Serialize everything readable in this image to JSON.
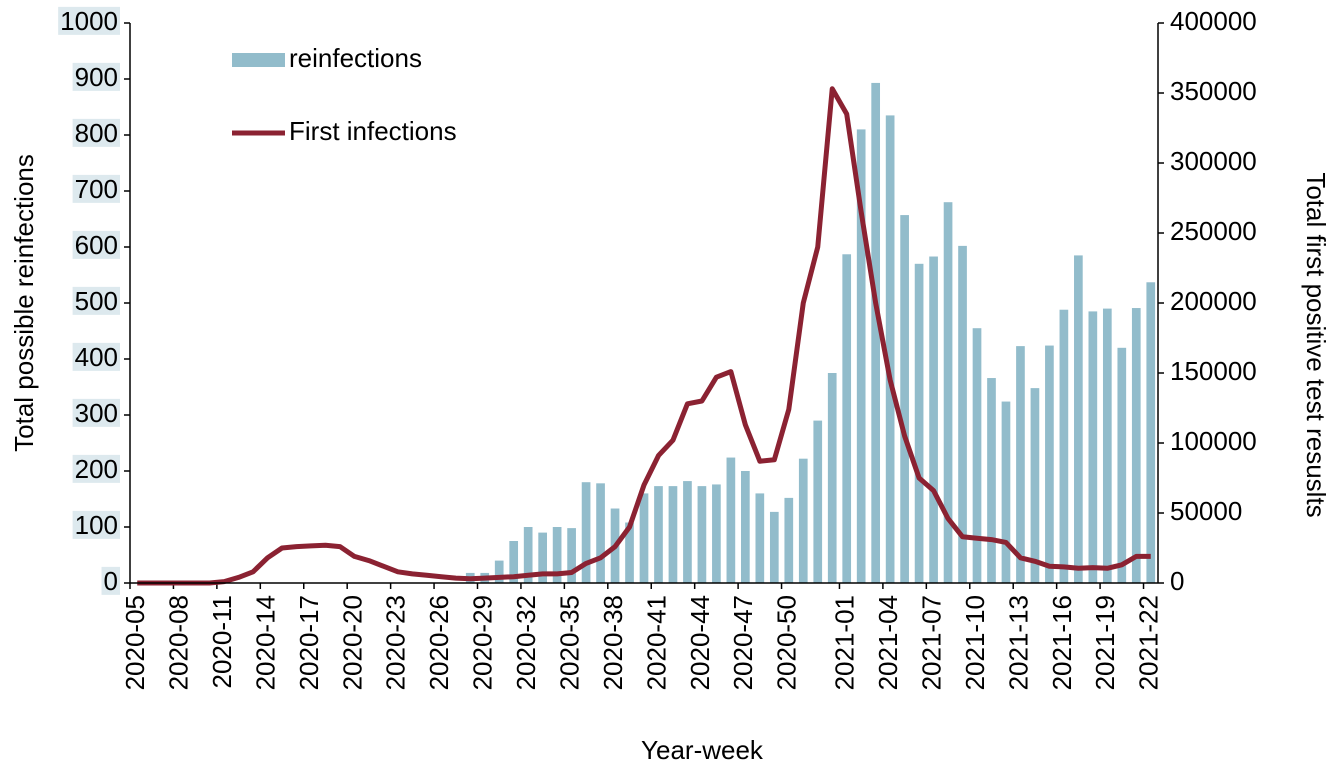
{
  "chart_data": {
    "type": "bar_line",
    "x_label": "Year-week",
    "y_label": "Total possible reinfections",
    "y2_label": "Total first positive test resuslts",
    "categories": [
      "2020-05",
      null,
      null,
      "2020-08",
      null,
      null,
      "2020-11",
      null,
      null,
      "2020-14",
      null,
      null,
      "2020-17",
      null,
      null,
      "2020-20",
      null,
      null,
      "2020-23",
      null,
      null,
      "2020-26",
      null,
      null,
      "2020-29",
      null,
      null,
      "2020-32",
      null,
      null,
      "2020-35",
      null,
      null,
      "2020-38",
      null,
      null,
      "2020-41",
      null,
      null,
      "2020-44",
      null,
      null,
      "2020-47",
      null,
      null,
      "2020-50",
      null,
      null,
      null,
      "2021-01",
      null,
      null,
      "2021-04",
      null,
      null,
      "2021-07",
      null,
      null,
      "2021-10",
      null,
      null,
      "2021-13",
      null,
      null,
      "2021-16",
      null,
      null,
      "2021-19",
      null,
      null,
      "2021-22"
    ],
    "series": [
      {
        "name": "reinfections",
        "color": "#92bccb",
        "kind": "bar",
        "values": [
          0,
          0,
          0,
          0,
          0,
          0,
          0,
          0,
          0,
          0,
          0,
          0,
          0,
          0,
          0,
          0,
          0,
          0,
          0,
          0,
          0,
          0,
          0,
          18,
          18,
          40,
          75,
          100,
          90,
          100,
          98,
          180,
          178,
          133,
          108,
          160,
          173,
          173,
          182,
          173,
          176,
          224,
          200,
          160,
          127,
          152,
          222,
          290,
          375,
          587,
          810,
          893,
          835,
          657,
          570,
          583,
          680,
          602,
          455,
          366,
          324,
          423,
          348,
          424,
          488,
          585,
          485,
          490,
          420,
          491,
          537
        ]
      },
      {
        "name": "First infections",
        "color": "#8b2232",
        "kind": "line",
        "axis": "y2",
        "values": [
          0,
          0,
          0,
          0,
          0,
          0,
          1000,
          4000,
          8000,
          18000,
          25000,
          26000,
          26500,
          27000,
          26000,
          19000,
          16000,
          12000,
          8000,
          6500,
          5500,
          4500,
          3500,
          3000,
          3500,
          4000,
          4500,
          5500,
          6500,
          6500,
          7500,
          14000,
          18000,
          26000,
          40000,
          70000,
          91000,
          102000,
          128000,
          130000,
          147000,
          151000,
          113000,
          87000,
          88000,
          124000,
          200000,
          240000,
          353000,
          335000,
          265000,
          200000,
          145000,
          105000,
          75000,
          66000,
          46000,
          33000,
          32000,
          31000,
          29000,
          18000,
          15500,
          12000,
          11500,
          10500,
          11000,
          10500,
          13000,
          19000,
          19000
        ]
      }
    ],
    "ylim": [
      0,
      1000
    ],
    "yticks": [
      0,
      100,
      200,
      300,
      400,
      500,
      600,
      700,
      800,
      900,
      1000
    ],
    "y2lim": [
      0,
      400000
    ],
    "y2ticks": [
      0,
      50000,
      100000,
      150000,
      200000,
      250000,
      300000,
      350000,
      400000
    ]
  }
}
